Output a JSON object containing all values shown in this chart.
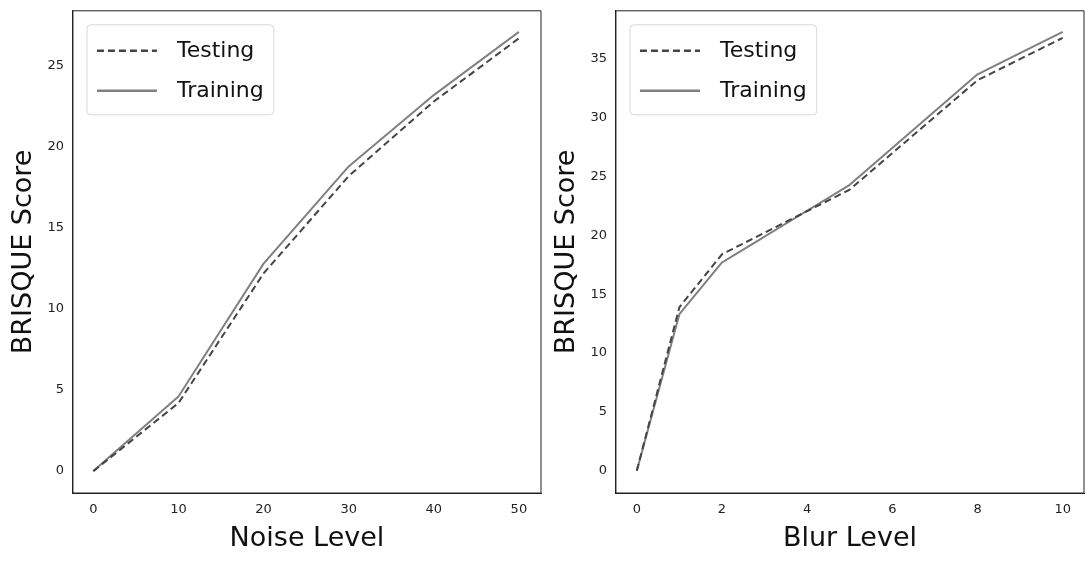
{
  "chart_data": [
    {
      "type": "line",
      "xlabel": "Noise Level",
      "ylabel": "BRISQUE Score",
      "legend": "top left",
      "grid": false,
      "x": [
        0,
        10,
        20,
        30,
        40,
        50
      ],
      "xlim": [
        -2.4,
        52.6
      ],
      "xticks": [
        0,
        10,
        20,
        30,
        40,
        50
      ],
      "ylim": [
        -1.35,
        28.4
      ],
      "yticks": [
        0,
        5,
        10,
        15,
        20,
        25
      ],
      "series": [
        {
          "name": "Testing",
          "color": "#444444",
          "line_style": "dashed",
          "values": [
            0,
            4.2,
            12.2,
            18.2,
            22.8,
            26.7
          ]
        },
        {
          "name": "Training",
          "color": "#808080",
          "line_style": "solid",
          "values": [
            0,
            4.6,
            12.8,
            18.8,
            23.2,
            27.1
          ]
        }
      ]
    },
    {
      "type": "line",
      "xlabel": "Blur Level",
      "ylabel": "BRISQUE Score",
      "legend": "top left",
      "grid": false,
      "x": [
        0,
        1,
        2,
        5,
        8,
        10
      ],
      "xlim": [
        -0.49,
        10.5
      ],
      "xticks": [
        0,
        2,
        4,
        6,
        8,
        10
      ],
      "ylim": [
        -1.9,
        39.1
      ],
      "yticks": [
        0,
        5,
        10,
        15,
        20,
        25,
        30,
        35
      ],
      "series": [
        {
          "name": "Testing",
          "color": "#444444",
          "line_style": "dashed",
          "values": [
            0,
            13.9,
            18.4,
            23.9,
            33.2,
            36.8
          ]
        },
        {
          "name": "Training",
          "color": "#808080",
          "line_style": "solid",
          "values": [
            0,
            13.3,
            17.7,
            24.3,
            33.7,
            37.3
          ]
        }
      ]
    }
  ]
}
